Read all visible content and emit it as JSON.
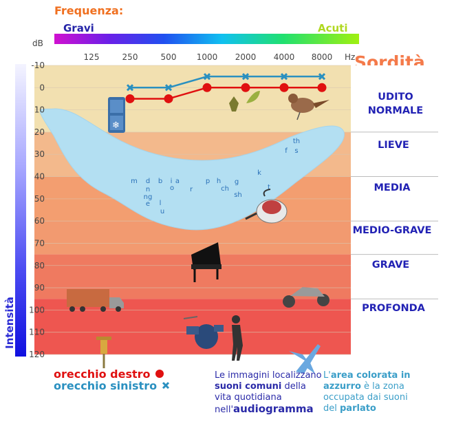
{
  "header": {
    "frequency_title": "Frequenza:",
    "low_label": "Gravi",
    "high_label": "Acuti",
    "deafness_title": "Sordità",
    "intensity_label": "Intensità"
  },
  "colors": {
    "right_ear": "#e01010",
    "left_ear": "#2a90c0",
    "speech_area": "#b3dff2",
    "zone_text": "#2222b4"
  },
  "zones": [
    {
      "label_lines": [
        "UDITO",
        "NORMALE"
      ],
      "color": "#f2e0b0"
    },
    {
      "label_lines": [
        "LIEVE"
      ],
      "color": "#f3b98c"
    },
    {
      "label_lines": [
        "MEDIA"
      ],
      "color": "#f39e70"
    },
    {
      "label_lines": [
        "MEDIO-GRAVE"
      ],
      "color": "#f29a70"
    },
    {
      "label_lines": [
        "GRAVE"
      ],
      "color": "#ef7a60"
    },
    {
      "label_lines": [
        "PROFONDA"
      ],
      "color": "#ee5650"
    }
  ],
  "speech_sounds": [
    "th",
    "f",
    "s",
    "m",
    "d",
    "b",
    "i",
    "a",
    "n",
    "ng",
    "e",
    "l",
    "u",
    "o",
    "r",
    "p",
    "h",
    "ch",
    "sh",
    "g",
    "k",
    "t"
  ],
  "legend": {
    "right": {
      "prefix": "orecchio ",
      "word": "destro",
      "marker": "circle"
    },
    "left": {
      "prefix": "orecchio ",
      "word": "sinistro",
      "marker": "cross"
    }
  },
  "notes": {
    "images": {
      "p1": "Le immagini localizzano ",
      "b1": "suoni comuni",
      "p2": " della vita quotidiana nell'",
      "b2": "audiogramma"
    },
    "speech": {
      "p1": "L'",
      "b1": "area colorata in azzurro",
      "p2": " è la zona occupata dai suoni del ",
      "b2": "parlato"
    }
  },
  "icons": [
    "fridge-icon",
    "leaves-icon",
    "bird-icon",
    "vacuum-cleaner-icon",
    "piano-icon",
    "truck-icon",
    "motorcycle-icon",
    "drum-kit-icon",
    "rock-singer-icon",
    "jackhammer-icon",
    "airplane-icon"
  ],
  "chart_data": {
    "type": "line",
    "title": "",
    "xlabel": "Hz",
    "ylabel": "dB",
    "x_scale": "log",
    "categories": [
      "125",
      "250",
      "500",
      "1000",
      "2000",
      "4000",
      "8000"
    ],
    "x": [
      125,
      250,
      500,
      1000,
      2000,
      4000,
      8000
    ],
    "y_ticks": [
      -10,
      0,
      10,
      20,
      30,
      40,
      50,
      60,
      70,
      80,
      90,
      100,
      110,
      120
    ],
    "ylim": [
      -10,
      120
    ],
    "y_inverted": true,
    "grid": true,
    "series": [
      {
        "name": "orecchio destro",
        "x": [
          250,
          500,
          1000,
          2000,
          4000,
          8000
        ],
        "values": [
          5,
          5,
          0,
          0,
          0,
          0
        ],
        "color": "#e01010",
        "marker": "circle"
      },
      {
        "name": "orecchio sinistro",
        "x": [
          250,
          500,
          1000,
          2000,
          4000,
          8000
        ],
        "values": [
          0,
          0,
          -5,
          -5,
          -5,
          -5
        ],
        "color": "#2a90c0",
        "marker": "cross"
      }
    ],
    "zone_bounds_db": [
      [
        -10,
        20
      ],
      [
        20,
        40
      ],
      [
        40,
        60
      ],
      [
        60,
        75
      ],
      [
        75,
        95
      ],
      [
        95,
        120
      ]
    ]
  }
}
